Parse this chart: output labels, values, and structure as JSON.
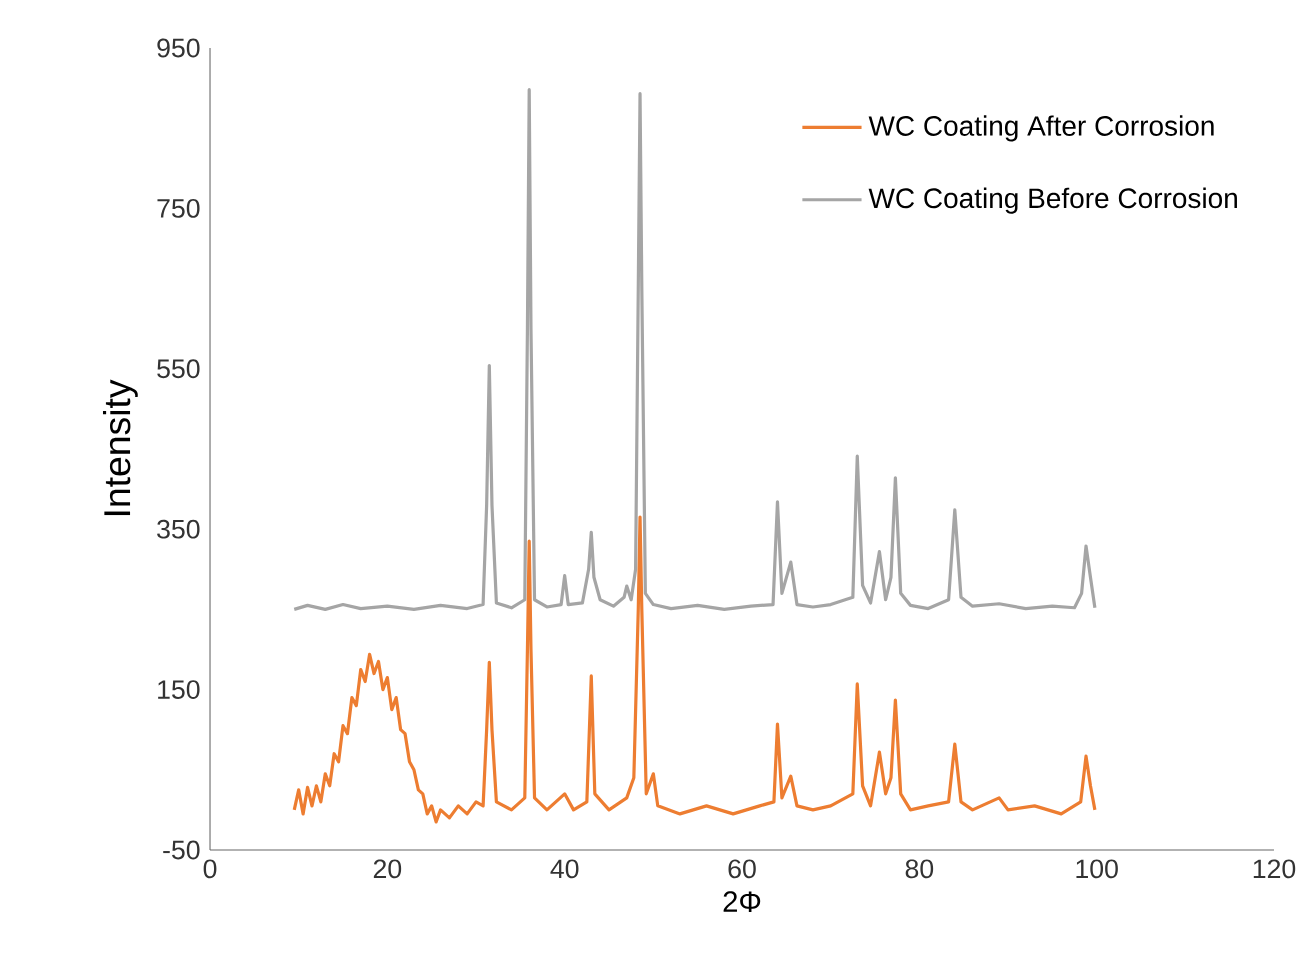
{
  "chart_data": {
    "type": "line",
    "xlabel": "2Φ",
    "ylabel": "Intensity",
    "xlim": [
      0,
      120
    ],
    "xticks": [
      0,
      20,
      40,
      60,
      80,
      100,
      120
    ],
    "ylim": [
      -50,
      950
    ],
    "yticks": [
      -50,
      150,
      350,
      550,
      750,
      950
    ],
    "grid": false,
    "legend": "top right",
    "marker": "none",
    "line_style": "solid",
    "series": [
      {
        "name": "WC Coating After Corrosion",
        "color": "#ed7d31",
        "x": [
          9.5,
          10,
          10.5,
          11,
          11.5,
          12,
          12.5,
          13,
          13.5,
          14,
          14.5,
          15,
          15.5,
          16,
          16.5,
          17,
          17.5,
          18,
          18.5,
          19,
          19.5,
          20,
          20.5,
          21,
          21.5,
          22,
          22.5,
          23,
          23.5,
          24,
          24.5,
          25,
          25.5,
          26,
          27,
          28,
          29,
          30,
          30.8,
          31.2,
          31.5,
          31.8,
          32.3,
          34,
          35.5,
          35.8,
          36,
          36.2,
          36.6,
          38,
          40,
          41,
          42.5,
          43,
          43.4,
          45,
          47,
          47.8,
          48.3,
          48.5,
          48.7,
          49.2,
          50,
          50.5,
          53,
          56,
          59,
          62,
          63.6,
          64,
          64.5,
          65.5,
          66.2,
          68,
          70,
          72.5,
          73,
          73.6,
          74.5,
          75.5,
          76.2,
          76.8,
          77.3,
          77.9,
          79,
          81,
          83.3,
          84,
          84.7,
          86,
          89,
          90,
          93,
          96,
          98.2,
          98.8,
          99.3,
          99.8
        ],
        "values": [
          0,
          25,
          -5,
          28,
          5,
          30,
          10,
          45,
          30,
          70,
          60,
          105,
          95,
          140,
          130,
          175,
          160,
          194,
          170,
          185,
          150,
          165,
          125,
          140,
          100,
          95,
          60,
          50,
          25,
          20,
          -5,
          5,
          -15,
          0,
          -10,
          5,
          -5,
          10,
          5,
          100,
          184,
          100,
          10,
          0,
          15,
          200,
          335,
          200,
          15,
          0,
          20,
          0,
          10,
          167,
          20,
          0,
          15,
          40,
          250,
          365,
          250,
          20,
          45,
          5,
          -5,
          5,
          -5,
          5,
          10,
          107,
          15,
          42,
          5,
          0,
          5,
          20,
          157,
          30,
          5,
          72,
          20,
          40,
          137,
          20,
          0,
          5,
          10,
          82,
          10,
          0,
          15,
          0,
          5,
          -5,
          10,
          67,
          30,
          0
        ]
      },
      {
        "name": "WC Coating Before Corrosion",
        "color": "#a5a5a5",
        "x": [
          9.5,
          11,
          13,
          15,
          17,
          20,
          23,
          26,
          29,
          30.8,
          31.2,
          31.5,
          31.8,
          32.3,
          34,
          35.5,
          35.8,
          36,
          36.2,
          36.6,
          38,
          39.6,
          40,
          40.4,
          42,
          42.7,
          43,
          43.3,
          44,
          45.5,
          46.7,
          47,
          47.5,
          48,
          48.3,
          48.5,
          48.7,
          49.1,
          50,
          52,
          55,
          58,
          61,
          63.5,
          64,
          64.5,
          65.5,
          66.2,
          68,
          70,
          72.5,
          73,
          73.6,
          74.5,
          75.5,
          76.2,
          76.8,
          77.3,
          77.9,
          79,
          81,
          83.3,
          84,
          84.7,
          86,
          89,
          92,
          95,
          97.5,
          98.3,
          98.8,
          99.3,
          99.8
        ],
        "values": [
          250,
          255,
          250,
          256,
          251,
          254,
          250,
          255,
          251,
          256,
          380,
          554,
          380,
          258,
          252,
          262,
          600,
          898,
          600,
          262,
          253,
          256,
          292,
          256,
          258,
          300,
          346,
          290,
          262,
          254,
          265,
          279,
          262,
          300,
          650,
          893,
          650,
          270,
          256,
          251,
          255,
          250,
          254,
          256,
          384,
          270,
          309,
          256,
          253,
          256,
          265,
          441,
          280,
          258,
          322,
          262,
          290,
          414,
          270,
          255,
          251,
          262,
          374,
          265,
          254,
          257,
          251,
          254,
          252,
          270,
          329,
          290,
          252
        ]
      }
    ]
  }
}
